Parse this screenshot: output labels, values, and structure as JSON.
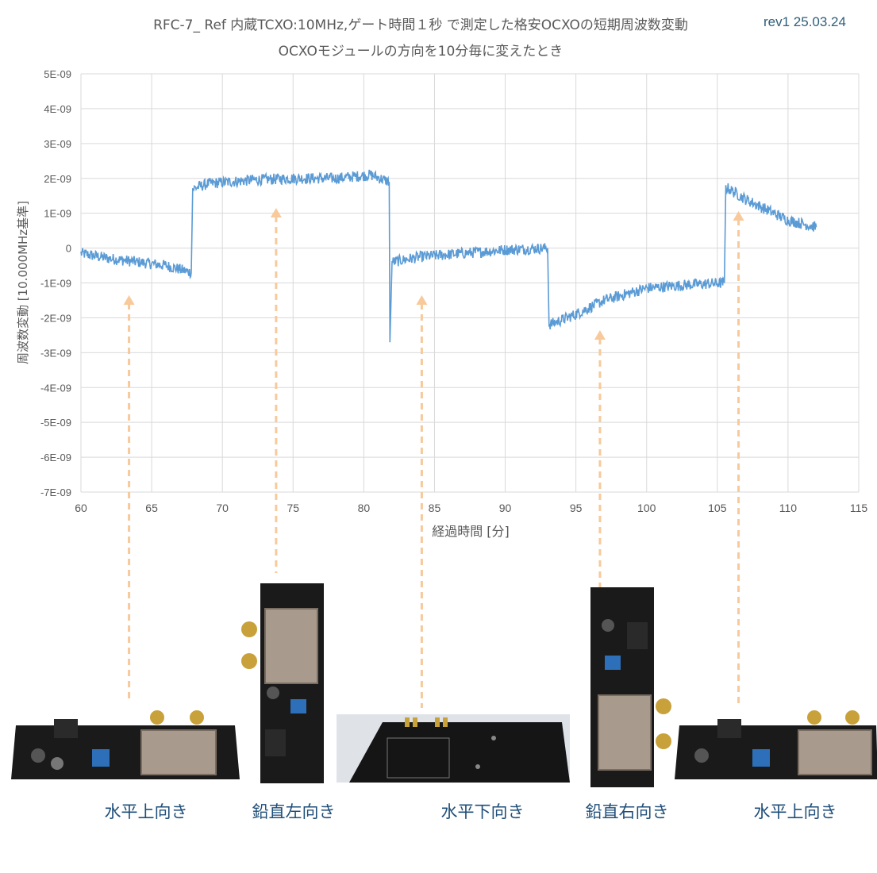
{
  "header": {
    "title_line1": "RFC-7_ Ref 内蔵TCXO:10MHz,ゲート時間１秒 で測定した格安OCXOの短期周波数変動",
    "title_line2": "OCXOモジュールの方向を10分毎に変えたとき",
    "revision": "rev1 25.03.24"
  },
  "colors": {
    "series": "#5b9bd5",
    "arrow": "#f8c99a",
    "grid": "#d9d9d9",
    "caption": "#1f4e79"
  },
  "chart_data": {
    "type": "line",
    "xlabel": "経過時間 [分]",
    "ylabel": "周波数変動 [10.000MHz基準]",
    "xlim": [
      60,
      115
    ],
    "ylim": [
      -7e-09,
      5e-09
    ],
    "x_ticks": [
      60,
      65,
      70,
      75,
      80,
      85,
      90,
      95,
      100,
      105,
      110,
      115
    ],
    "y_ticks": [
      5e-09,
      4e-09,
      3e-09,
      2e-09,
      1e-09,
      0,
      -1e-09,
      -2e-09,
      -3e-09,
      -4e-09,
      -5e-09,
      -6e-09,
      -7e-09
    ],
    "y_tick_labels": [
      "5E-09",
      "4E-09",
      "3E-09",
      "2E-09",
      "1E-09",
      "0",
      "-1E-09",
      "-2E-09",
      "-3E-09",
      "-4E-09",
      "-5E-09",
      "-6E-09",
      "-7E-09"
    ],
    "grid": true,
    "series": [
      {
        "x": [
          60,
          62,
          64,
          66,
          67.8,
          67.9,
          69,
          72,
          75,
          78,
          80.5,
          81.8,
          81.85,
          82,
          84,
          87,
          90,
          93,
          93.1,
          95,
          97,
          100,
          103,
          105.5,
          105.6,
          107,
          110,
          112
        ],
        "y": [
          -1.5e-10,
          -3e-10,
          -4e-10,
          -5e-10,
          -7e-10,
          1.7e-09,
          1.85e-09,
          1.95e-09,
          2e-09,
          2e-09,
          2.1e-09,
          1.9e-09,
          -2.7e-09,
          -4e-10,
          -2.5e-10,
          -1.5e-10,
          -5e-11,
          0,
          -2.2e-09,
          -1.9e-09,
          -1.5e-09,
          -1.15e-09,
          -1.05e-09,
          -1e-09,
          1.75e-09,
          1.4e-09,
          8e-10,
          6e-10
        ]
      }
    ]
  },
  "orientations": [
    {
      "label": "水平上向き",
      "x_min": 63.4
    },
    {
      "label": "鉛直左向き",
      "x_min": 73.8
    },
    {
      "label": "水平下向き",
      "x_min": 84.1
    },
    {
      "label": "鉛直右向き",
      "x_min": 96.7
    },
    {
      "label": "水平上向き",
      "x_min": 106.5
    }
  ]
}
